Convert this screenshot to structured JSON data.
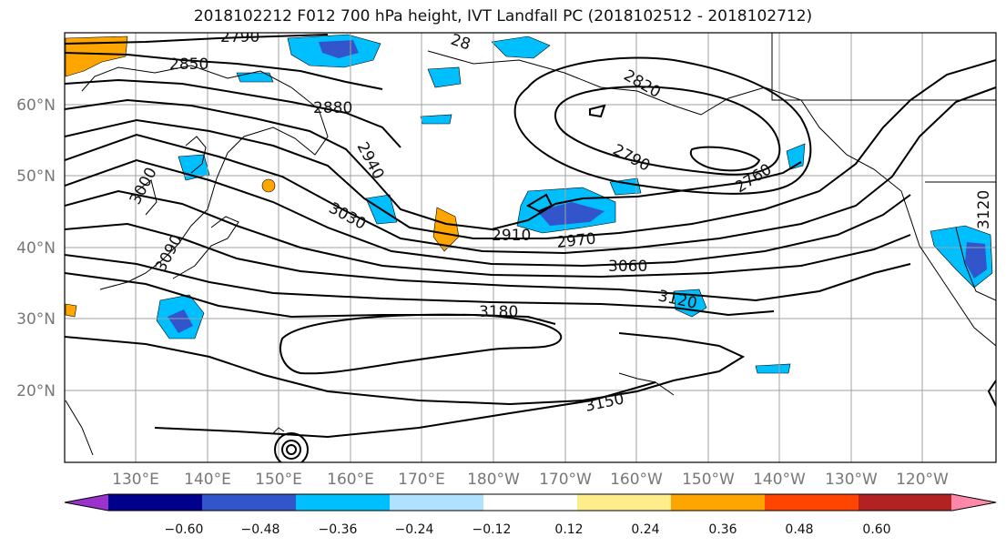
{
  "title": "2018102212 F012 700 hPa height, IVT Landfall PC (2018102512 - 2018102712)",
  "lat_labels": [
    "60°N",
    "50°N",
    "40°N",
    "30°N",
    "20°N"
  ],
  "lon_labels": [
    "130°E",
    "140°E",
    "150°E",
    "160°E",
    "170°E",
    "180°W",
    "170°W",
    "160°W",
    "150°W",
    "140°W",
    "130°W",
    "120°W"
  ],
  "contour_labels": [
    "2790",
    "2850",
    "2880",
    "2940",
    "3000",
    "3030",
    "3090",
    "2910",
    "2970",
    "3060",
    "3120",
    "3180",
    "3150",
    "2820",
    "2790",
    "2760",
    "3120",
    "28"
  ],
  "colorbar": {
    "tick_labels": [
      "−0.60",
      "−0.48",
      "−0.36",
      "−0.24",
      "−0.12",
      "0.12",
      "0.24",
      "0.36",
      "0.48",
      "0.60"
    ],
    "colors": [
      "#9933cc",
      "#00008b",
      "#3355cc",
      "#00bfff",
      "#b0e2ff",
      "#ffffff",
      "#ffec8b",
      "#ffa500",
      "#ff4500",
      "#b22222",
      "#ff88aa"
    ]
  },
  "colors": {
    "contour": "#000000",
    "grid": "#a0a0a0",
    "coast": "#000000",
    "positive_fill": "#ffa500",
    "negative_fill": "#00bfff",
    "negative_core": "#3355cc"
  }
}
